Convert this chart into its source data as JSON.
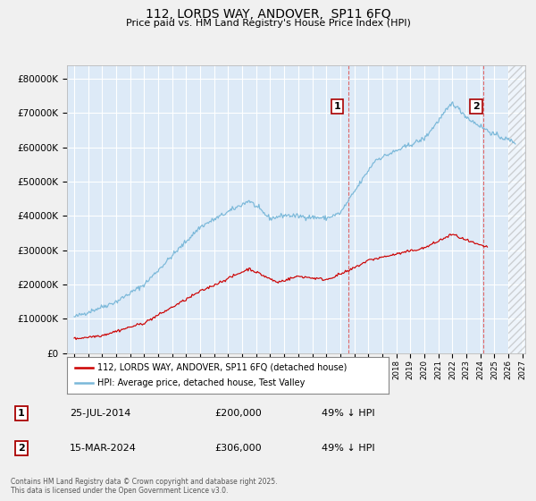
{
  "title": "112, LORDS WAY, ANDOVER,  SP11 6FQ",
  "subtitle": "Price paid vs. HM Land Registry's House Price Index (HPI)",
  "ytick_values": [
    0,
    100000,
    200000,
    300000,
    400000,
    500000,
    600000,
    700000,
    800000
  ],
  "ylim": [
    0,
    840000
  ],
  "xlim_start": 1994.5,
  "xlim_end": 2027.2,
  "hpi_color": "#7ab8d9",
  "property_color": "#cc0000",
  "vline1_x": 2014.57,
  "vline2_x": 2024.2,
  "annotation1_label": "1",
  "annotation2_label": "2",
  "legend_property": "112, LORDS WAY, ANDOVER, SP11 6FQ (detached house)",
  "legend_hpi": "HPI: Average price, detached house, Test Valley",
  "table_row1_num": "1",
  "table_row1_date": "25-JUL-2014",
  "table_row1_price": "£200,000",
  "table_row1_hpi": "49% ↓ HPI",
  "table_row2_num": "2",
  "table_row2_date": "15-MAR-2024",
  "table_row2_price": "£306,000",
  "table_row2_hpi": "49% ↓ HPI",
  "footer": "Contains HM Land Registry data © Crown copyright and database right 2025.\nThis data is licensed under the Open Government Licence v3.0.",
  "bg_color": "#ddeaf7",
  "fig_bg": "#f0f0f0"
}
